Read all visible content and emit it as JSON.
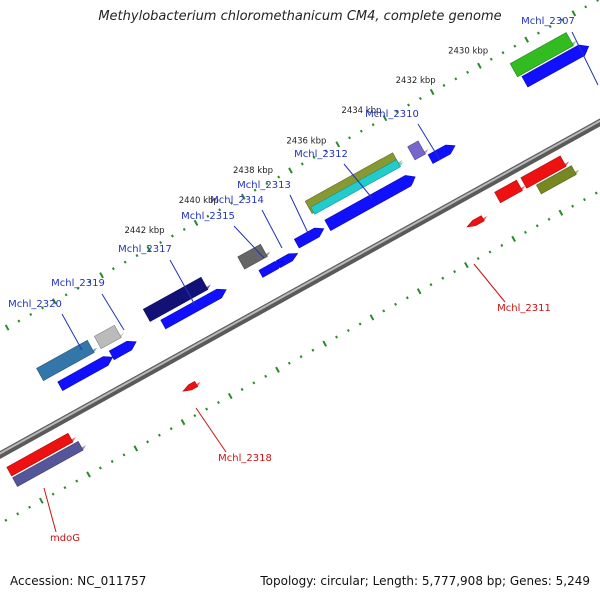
{
  "title": "Methylobacterium chloromethanicum CM4, complete genome",
  "footer": {
    "accession": "Accession: NC_011757",
    "summary": "Topology: circular; Length: 5,777,908 bp; Genes: 5,249"
  },
  "colors": {
    "backbone": "#888888",
    "cds": "#1010ff",
    "ruler": "#2a8a2a",
    "label_forward": "#2233bb",
    "label_reverse": "#cc1111"
  },
  "ticks": [
    {
      "label": "2430 kbp"
    },
    {
      "label": "2432 kbp"
    },
    {
      "label": "2434 kbp"
    },
    {
      "label": "2436 kbp"
    },
    {
      "label": "2438 kbp"
    },
    {
      "label": "2440 kbp"
    },
    {
      "label": "2442 kbp"
    }
  ],
  "gene_labels": [
    {
      "name": "Mchl_2307",
      "strand": "forward"
    },
    {
      "name": "Mchl_2310",
      "strand": "forward"
    },
    {
      "name": "Mchl_2312",
      "strand": "forward"
    },
    {
      "name": "Mchl_2313",
      "strand": "forward"
    },
    {
      "name": "Mchl_2314",
      "strand": "forward"
    },
    {
      "name": "Mchl_2315",
      "strand": "forward"
    },
    {
      "name": "Mchl_2317",
      "strand": "forward"
    },
    {
      "name": "Mchl_2319",
      "strand": "forward"
    },
    {
      "name": "Mchl_2320",
      "strand": "forward"
    },
    {
      "name": "Mchl_2311",
      "strand": "reverse"
    },
    {
      "name": "Mchl_2318",
      "strand": "reverse"
    },
    {
      "name": "mdoG",
      "strand": "reverse"
    }
  ]
}
